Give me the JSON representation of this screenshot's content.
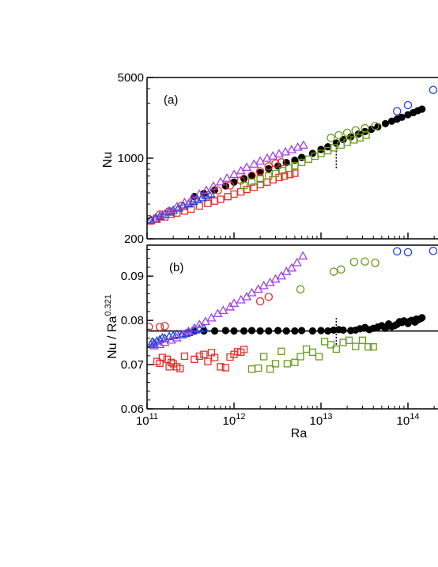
{
  "chart_data": [
    {
      "panel": "(a)",
      "type": "scatter",
      "title": "",
      "xlabel": "",
      "ylabel": "Nu",
      "xscale": "log",
      "yscale": "log",
      "xlim": [
        100000000000.0,
        200000000000000.0
      ],
      "ylim": [
        200,
        5000
      ],
      "xticks": [],
      "yticks": [
        {
          "value": 200,
          "label": "200"
        },
        {
          "value": 1000,
          "label": "1000"
        },
        {
          "value": 5000,
          "label": "5000"
        }
      ],
      "annotations": [
        {
          "type": "dotted-vertical-line",
          "x": 15000000000000.0,
          "y_range": [
            820,
            1380
          ]
        }
      ],
      "series": [
        {
          "marker": "circle-filled",
          "color": "#000000",
          "x": [
            350000000000.0,
            450000000000.0,
            600000000000.0,
            800000000000.0,
            1000000000000.0,
            1300000000000.0,
            1600000000000.0,
            2000000000000.0,
            2500000000000.0,
            3200000000000.0,
            4000000000000.0,
            5000000000000.0,
            6000000000000.0,
            8000000000000.0,
            10000000000000.0,
            12000000000000.0,
            15000000000000.0,
            18000000000000.0,
            22000000000000.0,
            27000000000000.0,
            32000000000000.0,
            38000000000000.0,
            45000000000000.0,
            55000000000000.0,
            65000000000000.0,
            75000000000000.0,
            85000000000000.0,
            100000000000000.0,
            115000000000000.0,
            130000000000000.0,
            145000000000000.0
          ],
          "y": [
            465,
            495,
            530,
            575,
            620,
            665,
            705,
            750,
            810,
            855,
            915,
            960,
            1015,
            1100,
            1190,
            1255,
            1350,
            1450,
            1530,
            1620,
            1700,
            1780,
            1870,
            1990,
            2090,
            2180,
            2260,
            2380,
            2480,
            2580,
            2660
          ]
        },
        {
          "marker": "circle-open",
          "color": "#e0302a",
          "x": [
            105000000000.0,
            140000000000.0,
            180000000000.0,
            250000000000.0,
            350000000000.0,
            500000000000.0,
            650000000000.0,
            900000000000.0,
            1200000000000.0,
            1600000000000.0,
            2000000000000.0,
            2500000000000.0,
            3000000000000.0,
            3500000000000.0
          ],
          "y": [
            296,
            324,
            347,
            387,
            430,
            478,
            525,
            580,
            640,
            705,
            770,
            850,
            900,
            920
          ]
        },
        {
          "marker": "square-open",
          "color": "#e0302a",
          "x": [
            110000000000.0,
            130000000000.0,
            160000000000.0,
            190000000000.0,
            220000000000.0,
            270000000000.0,
            320000000000.0,
            400000000000.0,
            500000000000.0,
            600000000000.0,
            700000000000.0,
            850000000000.0,
            1000000000000.0,
            1200000000000.0,
            1400000000000.0,
            1700000000000.0,
            2000000000000.0,
            2400000000000.0,
            2800000000000.0,
            3300000000000.0,
            3800000000000.0,
            4400000000000.0,
            5000000000000.0
          ],
          "y": [
            286,
            296,
            310,
            326,
            335,
            348,
            362,
            385,
            405,
            425,
            440,
            464,
            488,
            510,
            535,
            560,
            590,
            620,
            650,
            680,
            700,
            722,
            740
          ]
        },
        {
          "marker": "triangle-open",
          "color": "#1a3fe0",
          "x": [
            110000000000.0,
            125000000000.0,
            140000000000.0,
            160000000000.0,
            180000000000.0,
            200000000000.0,
            230000000000.0,
            260000000000.0,
            300000000000.0,
            340000000000.0,
            380000000000.0,
            430000000000.0,
            480000000000.0,
            540000000000.0
          ],
          "y": [
            290,
            300,
            312,
            326,
            340,
            352,
            368,
            382,
            400,
            420,
            436,
            452,
            470,
            488
          ]
        },
        {
          "marker": "triangle-open",
          "color": "#a040e0",
          "x": [
            120000000000.0,
            150000000000.0,
            180000000000.0,
            220000000000.0,
            270000000000.0,
            330000000000.0,
            400000000000.0,
            480000000000.0,
            580000000000.0,
            700000000000.0,
            830000000000.0,
            1000000000000.0,
            1200000000000.0,
            1400000000000.0,
            1700000000000.0,
            2000000000000.0,
            2400000000000.0,
            2800000000000.0,
            3300000000000.0,
            3900000000000.0,
            4600000000000.0,
            5400000000000.0,
            6300000000000.0
          ],
          "y": [
            298,
            322,
            348,
            378,
            412,
            448,
            486,
            525,
            570,
            620,
            668,
            720,
            775,
            830,
            885,
            940,
            995,
            1040,
            1085,
            1130,
            1180,
            1240,
            1290
          ]
        },
        {
          "marker": "circle-open",
          "color": "#6a9a1a",
          "x": [
            13000000000000.0,
            16000000000000.0,
            20000000000000.0,
            25000000000000.0,
            32000000000000.0,
            42000000000000.0
          ],
          "y": [
            1500,
            1580,
            1660,
            1740,
            1820,
            1900
          ]
        },
        {
          "marker": "square-open",
          "color": "#6a9a1a",
          "x": [
            1300000000000.0,
            1600000000000.0,
            2000000000000.0,
            2500000000000.0,
            3000000000000.0,
            3600000000000.0,
            4300000000000.0,
            5000000000000.0,
            6000000000000.0,
            7200000000000.0,
            8500000000000.0,
            10000000000000.0,
            12000000000000.0,
            14000000000000.0,
            17000000000000.0,
            20000000000000.0,
            24000000000000.0,
            28000000000000.0,
            33000000000000.0
          ],
          "y": [
            580,
            620,
            660,
            700,
            735,
            780,
            820,
            860,
            920,
            980,
            1040,
            1100,
            1160,
            1230,
            1300,
            1370,
            1440,
            1500,
            1580
          ]
        },
        {
          "marker": "circle-open",
          "color": "#1a3fe0",
          "x": [
            75000000000000.0,
            100000000000000.0,
            195000000000000.0
          ],
          "y": [
            2550,
            2880,
            3900
          ]
        }
      ]
    },
    {
      "panel": "(b)",
      "type": "scatter",
      "title": "",
      "xlabel": "Ra",
      "ylabel": "Nu / Ra",
      "ylabel_exponent": "0.321",
      "xscale": "log",
      "yscale": "linear",
      "xlim": [
        100000000000.0,
        200000000000000.0
      ],
      "ylim": [
        0.06,
        0.097
      ],
      "xticks": [
        {
          "value": 100000000000.0,
          "base": "10",
          "exp": "11"
        },
        {
          "value": 1000000000000.0,
          "base": "10",
          "exp": "12"
        },
        {
          "value": 10000000000000.0,
          "base": "10",
          "exp": "13"
        },
        {
          "value": 100000000000000.0,
          "base": "10",
          "exp": "14"
        }
      ],
      "yticks": [
        {
          "value": 0.06,
          "label": "0.06"
        },
        {
          "value": 0.07,
          "label": "0.07"
        },
        {
          "value": 0.08,
          "label": "0.08"
        },
        {
          "value": 0.09,
          "label": "0.09"
        }
      ],
      "annotations": [
        {
          "type": "horizontal-line",
          "y": 0.0776
        },
        {
          "type": "dotted-vertical-line",
          "x": 15000000000000.0,
          "y_range": [
            0.0745,
            0.0805
          ]
        }
      ],
      "series": [
        {
          "marker": "circle-filled",
          "color": "#000000",
          "x": [
            350000000000.0,
            450000000000.0,
            600000000000.0,
            800000000000.0,
            1000000000000.0,
            1300000000000.0,
            1600000000000.0,
            2000000000000.0,
            2500000000000.0,
            3200000000000.0,
            4000000000000.0,
            5000000000000.0,
            6000000000000.0,
            8000000000000.0,
            10000000000000.0,
            12000000000000.0,
            14000000000000.0,
            16000000000000.0,
            18000000000000.0,
            22000000000000.0,
            25000000000000.0,
            28000000000000.0,
            32000000000000.0,
            36000000000000.0,
            40000000000000.0,
            45000000000000.0,
            50000000000000.0,
            55000000000000.0,
            60000000000000.0,
            65000000000000.0,
            70000000000000.0,
            75000000000000.0,
            80000000000000.0,
            85000000000000.0,
            90000000000000.0,
            100000000000000.0,
            105000000000000.0,
            110000000000000.0,
            120000000000000.0,
            125000000000000.0,
            130000000000000.0,
            140000000000000.0,
            145000000000000.0
          ],
          "y": [
            0.0776,
            0.0776,
            0.0776,
            0.0777,
            0.0776,
            0.0776,
            0.0777,
            0.0776,
            0.0776,
            0.0777,
            0.0776,
            0.0776,
            0.0777,
            0.0776,
            0.0777,
            0.0776,
            0.0778,
            0.0779,
            0.0778,
            0.0777,
            0.0778,
            0.0781,
            0.0784,
            0.0779,
            0.0782,
            0.0785,
            0.0788,
            0.0782,
            0.0792,
            0.0786,
            0.0788,
            0.0791,
            0.0797,
            0.0795,
            0.0799,
            0.0793,
            0.0798,
            0.08,
            0.0796,
            0.0803,
            0.0801,
            0.0804,
            0.0806
          ]
        },
        {
          "marker": "circle-open",
          "color": "#e0302a",
          "x": [
            105000000000.0,
            140000000000.0,
            160000000000.0,
            2000000000000.0,
            2500000000000.0
          ],
          "y": [
            0.0785,
            0.0785,
            0.0787,
            0.0843,
            0.0853
          ]
        },
        {
          "marker": "square-open",
          "color": "#e0302a",
          "x": [
            130000000000.0,
            140000000000.0,
            150000000000.0,
            170000000000.0,
            180000000000.0,
            190000000000.0,
            200000000000.0,
            220000000000.0,
            240000000000.0,
            270000000000.0,
            350000000000.0,
            400000000000.0,
            450000000000.0,
            500000000000.0,
            550000000000.0,
            600000000000.0,
            700000000000.0,
            800000000000.0,
            900000000000.0,
            1000000000000.0,
            1100000000000.0,
            1200000000000.0,
            1300000000000.0
          ],
          "y": [
            0.0707,
            0.0703,
            0.0716,
            0.0712,
            0.0695,
            0.0705,
            0.0702,
            0.0695,
            0.0691,
            0.0719,
            0.0712,
            0.0719,
            0.0723,
            0.0707,
            0.0727,
            0.0716,
            0.0695,
            0.0693,
            0.0717,
            0.0723,
            0.0729,
            0.0728,
            0.0734
          ]
        },
        {
          "marker": "triangle-open",
          "color": "#1a3fe0",
          "x": [
            110000000000.0,
            115000000000.0,
            120000000000.0,
            130000000000.0,
            140000000000.0,
            150000000000.0,
            160000000000.0,
            180000000000.0,
            200000000000.0,
            220000000000.0,
            250000000000.0,
            280000000000.0,
            300000000000.0,
            330000000000.0,
            360000000000.0,
            400000000000.0,
            450000000000.0
          ],
          "y": [
            0.0745,
            0.0751,
            0.0748,
            0.0753,
            0.0756,
            0.076,
            0.0759,
            0.0763,
            0.0765,
            0.0768,
            0.0767,
            0.077,
            0.0772,
            0.0775,
            0.0778,
            0.078,
            0.0782
          ]
        },
        {
          "marker": "triangle-open",
          "color": "#a040e0",
          "x": [
            120000000000.0,
            140000000000.0,
            160000000000.0,
            190000000000.0,
            220000000000.0,
            260000000000.0,
            300000000000.0,
            350000000000.0,
            400000000000.0,
            470000000000.0,
            550000000000.0,
            650000000000.0,
            750000000000.0,
            900000000000.0,
            1000000000000.0,
            1200000000000.0,
            1400000000000.0,
            1600000000000.0,
            1900000000000.0,
            2200000000000.0,
            2600000000000.0,
            3000000000000.0,
            3500000000000.0,
            4000000000000.0,
            4600000000000.0,
            5300000000000.0,
            6200000000000.0
          ],
          "y": [
            0.0742,
            0.0745,
            0.075,
            0.0755,
            0.076,
            0.0768,
            0.0775,
            0.0782,
            0.079,
            0.0797,
            0.0805,
            0.0815,
            0.0822,
            0.083,
            0.0838,
            0.0846,
            0.0853,
            0.0862,
            0.087,
            0.0878,
            0.0885,
            0.0893,
            0.09,
            0.091,
            0.0918,
            0.093,
            0.0945
          ]
        },
        {
          "marker": "circle-open",
          "color": "#6a9a1a",
          "x": [
            5800000000000.0,
            14000000000000.0,
            17000000000000.0,
            24000000000000.0,
            32000000000000.0,
            42000000000000.0
          ],
          "y": [
            0.087,
            0.091,
            0.0915,
            0.0932,
            0.0933,
            0.093
          ]
        },
        {
          "marker": "square-open",
          "color": "#6a9a1a",
          "x": [
            1600000000000.0,
            1900000000000.0,
            2200000000000.0,
            2600000000000.0,
            3000000000000.0,
            3500000000000.0,
            4100000000000.0,
            5000000000000.0,
            5800000000000.0,
            6800000000000.0,
            8000000000000.0,
            9500000000000.0,
            11000000000000.0,
            13000000000000.0,
            15000000000000.0,
            18000000000000.0,
            21000000000000.0,
            25000000000000.0,
            30000000000000.0,
            35000000000000.0,
            40000000000000.0
          ],
          "y": [
            0.069,
            0.0692,
            0.0718,
            0.069,
            0.0702,
            0.073,
            0.0702,
            0.0705,
            0.0718,
            0.0735,
            0.0728,
            0.0718,
            0.0752,
            0.0745,
            0.0735,
            0.075,
            0.0755,
            0.0741,
            0.0755,
            0.074,
            0.074
          ]
        },
        {
          "marker": "circle-open",
          "color": "#1a3fe0",
          "x": [
            75000000000000.0,
            100000000000000.0,
            195000000000000.0
          ],
          "y": [
            0.0956,
            0.0954,
            0.0957
          ]
        }
      ]
    }
  ]
}
